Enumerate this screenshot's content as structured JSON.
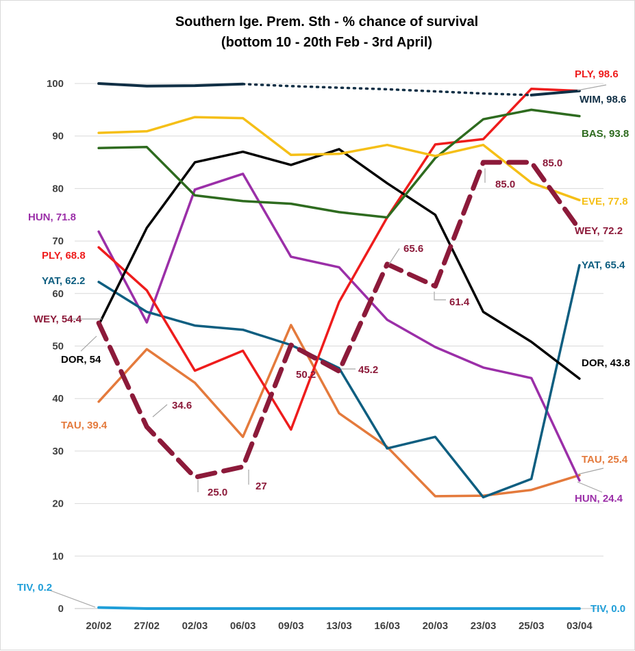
{
  "chart_data": {
    "type": "line",
    "title": [
      "Southern lge. Prem. Sth - % chance of survival",
      "(bottom 10 - 20th Feb - 3rd April)"
    ],
    "xlabel": "",
    "ylabel": "",
    "ylim": [
      0,
      100
    ],
    "yticks": [
      0,
      10,
      20,
      30,
      40,
      50,
      60,
      70,
      80,
      90,
      100
    ],
    "categories": [
      "20/02",
      "27/02",
      "02/03",
      "06/03",
      "09/03",
      "13/03",
      "16/03",
      "20/03",
      "23/03",
      "25/03",
      "03/04"
    ],
    "series": [
      {
        "name": "TIV",
        "color": "#1f9ed8",
        "width": 4,
        "dash": "",
        "values": [
          0.2,
          0.0,
          0.0,
          0.0,
          0.0,
          0.0,
          0.0,
          0.0,
          0.0,
          0.0,
          0.0
        ],
        "start_label": "TIV, 0.2",
        "end_label": "TIV, 0.0"
      },
      {
        "name": "TAU",
        "color": "#e47a3c",
        "width": 3.5,
        "dash": "",
        "values": [
          39.4,
          49.4,
          43.0,
          32.7,
          54.0,
          37.2,
          30.8,
          21.4,
          21.5,
          22.6,
          25.4
        ],
        "start_label": "TAU, 39.4",
        "end_label": "TAU, 25.4"
      },
      {
        "name": "HUN",
        "color": "#9b2fa8",
        "width": 3.5,
        "dash": "",
        "values": [
          71.8,
          54.5,
          79.8,
          82.8,
          67.0,
          65.0,
          55.0,
          49.8,
          45.9,
          43.9,
          24.4
        ],
        "start_label": "HUN, 71.8",
        "end_label": "HUN, 24.4"
      },
      {
        "name": "YAT",
        "color": "#0e5e80",
        "width": 3.5,
        "dash": "",
        "values": [
          62.2,
          56.5,
          53.9,
          53.1,
          50.2,
          45.8,
          30.5,
          32.7,
          21.2,
          24.7,
          65.4
        ],
        "start_label": "YAT, 62.2",
        "end_label": "YAT, 65.4"
      },
      {
        "name": "PLY",
        "color": "#ee1c1c",
        "width": 3.5,
        "dash": "",
        "values": [
          68.8,
          60.6,
          45.3,
          49.1,
          34.1,
          58.4,
          74.5,
          88.4,
          89.4,
          99.0,
          98.6
        ],
        "start_label": "PLY, 68.8",
        "end_label": "PLY, 98.6"
      },
      {
        "name": "DOR",
        "color": "#000000",
        "width": 3.5,
        "dash": "",
        "values": [
          54.0,
          72.5,
          85.0,
          87.0,
          84.5,
          87.5,
          81.0,
          75.0,
          56.5,
          50.8,
          43.8
        ],
        "start_label": "DOR, 54",
        "end_label": "DOR, 43.8"
      },
      {
        "name": "BAS",
        "color": "#2e6b1f",
        "width": 3.5,
        "dash": "",
        "values": [
          87.7,
          87.9,
          78.7,
          77.6,
          77.1,
          75.5,
          74.5,
          85.8,
          93.2,
          95.0,
          93.8
        ],
        "start_label": "",
        "end_label": "BAS, 93.8"
      },
      {
        "name": "EVE",
        "color": "#f5bf17",
        "width": 3.5,
        "dash": "",
        "values": [
          90.6,
          90.9,
          93.6,
          93.4,
          86.4,
          86.6,
          88.3,
          86.2,
          88.3,
          81.1,
          77.8
        ],
        "start_label": "",
        "end_label": "EVE, 77.8"
      },
      {
        "name": "WIM",
        "color": "#102f45",
        "width": 4,
        "dash": "",
        "values": [
          100.0,
          99.5,
          99.6,
          99.9,
          null,
          null,
          null,
          null,
          null,
          97.8,
          98.6
        ],
        "start_label": "",
        "end_label": "WIM, 98.6"
      },
      {
        "name": "WIM-gap",
        "color": "#102f45",
        "width": 3.5,
        "dash": "2 7",
        "values": [
          null,
          null,
          null,
          99.9,
          99.5,
          99.2,
          98.9,
          98.5,
          98.1,
          97.8,
          null
        ],
        "start_label": "",
        "end_label": ""
      },
      {
        "name": "WEY",
        "color": "#8c1a3a",
        "width": 7,
        "dash": "26 13",
        "values": [
          54.4,
          34.6,
          25.0,
          27.0,
          50.2,
          45.2,
          65.6,
          61.4,
          85.0,
          85.0,
          72.2
        ],
        "start_label": "WEY, 54.4",
        "end_label": "WEY, 72.2"
      }
    ],
    "point_labels": [
      {
        "series": "WEY",
        "index": 1,
        "text": "34.6"
      },
      {
        "series": "WEY",
        "index": 2,
        "text": "25.0"
      },
      {
        "series": "WEY",
        "index": 3,
        "text": "27"
      },
      {
        "series": "WEY",
        "index": 4,
        "text": "50.2"
      },
      {
        "series": "WEY",
        "index": 5,
        "text": "45.2"
      },
      {
        "series": "WEY",
        "index": 6,
        "text": "65.6"
      },
      {
        "series": "WEY",
        "index": 7,
        "text": "61.4"
      },
      {
        "series": "WEY",
        "index": 8,
        "text": "85.0"
      },
      {
        "series": "WEY",
        "index": 9,
        "text": "85.0"
      }
    ],
    "grid": true
  }
}
